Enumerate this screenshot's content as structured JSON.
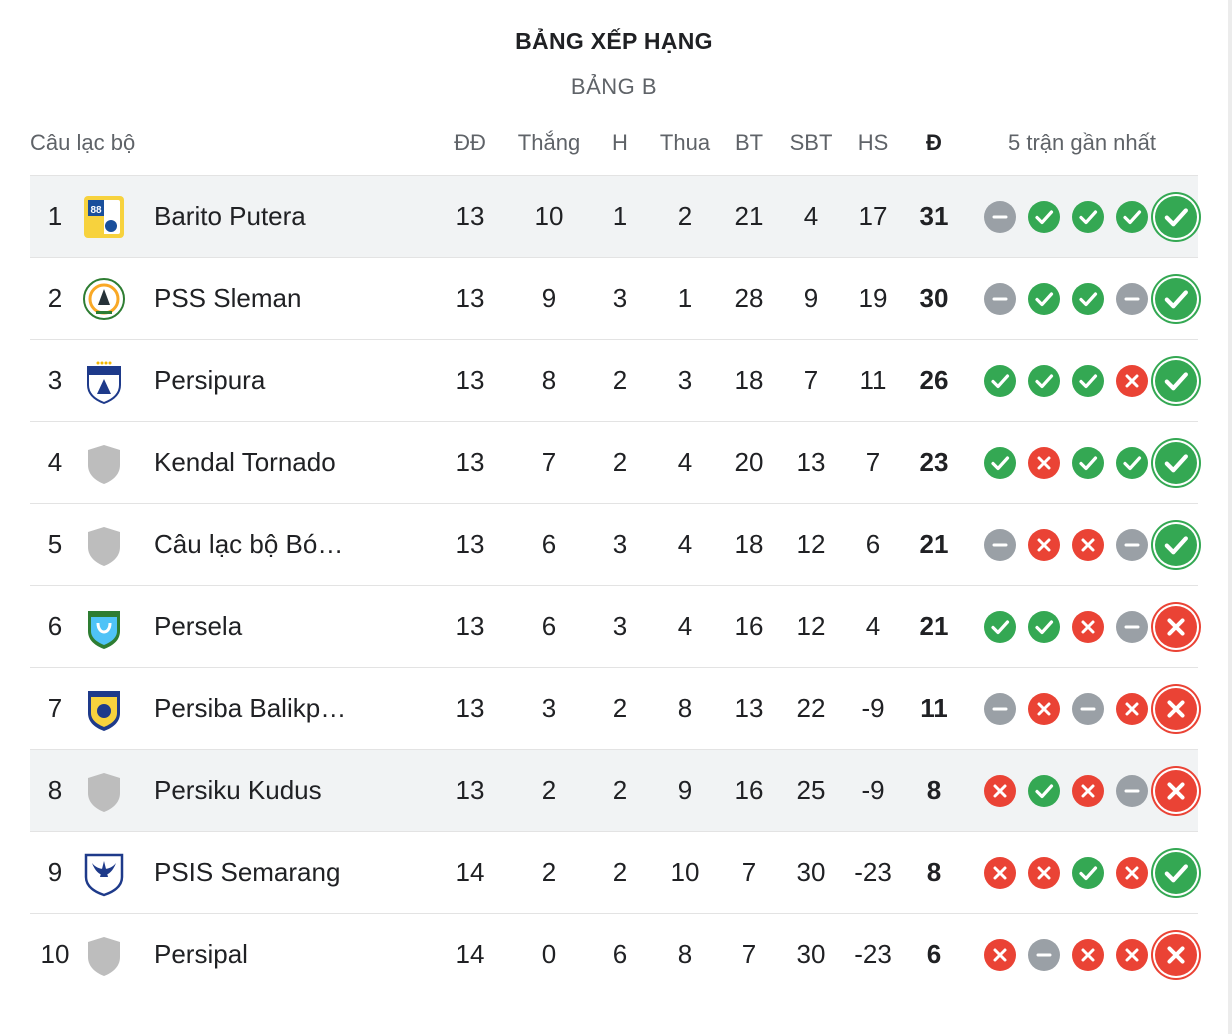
{
  "title": "BẢNG XẾP HẠNG",
  "subtitle": "BẢNG B",
  "headers": {
    "club": "Câu lạc bộ",
    "played": "ĐĐ",
    "won": "Thắng",
    "drawn": "H",
    "lost": "Thua",
    "gf": "BT",
    "ga": "SBT",
    "gd": "HS",
    "pts": "Đ",
    "form": "5 trận gần nhất"
  },
  "colors": {
    "win": "#34a853",
    "loss": "#ea4335",
    "draw": "#9aa0a6",
    "highlight": "#f1f3f4"
  },
  "rows": [
    {
      "pos": "1",
      "team": "Barito Putera",
      "logo": "barito-putera-logo",
      "played": "13",
      "won": "10",
      "drawn": "1",
      "lost": "2",
      "gf": "21",
      "ga": "4",
      "gd": "17",
      "pts": "31",
      "form": [
        "D",
        "W",
        "W",
        "W",
        "W"
      ],
      "highlight": true
    },
    {
      "pos": "2",
      "team": "PSS Sleman",
      "logo": "pss-sleman-logo",
      "played": "13",
      "won": "9",
      "drawn": "3",
      "lost": "1",
      "gf": "28",
      "ga": "9",
      "gd": "19",
      "pts": "30",
      "form": [
        "D",
        "W",
        "W",
        "D",
        "W"
      ],
      "highlight": false
    },
    {
      "pos": "3",
      "team": "Persipura",
      "logo": "persipura-logo",
      "played": "13",
      "won": "8",
      "drawn": "2",
      "lost": "3",
      "gf": "18",
      "ga": "7",
      "gd": "11",
      "pts": "26",
      "form": [
        "W",
        "W",
        "W",
        "L",
        "W"
      ],
      "highlight": false
    },
    {
      "pos": "4",
      "team": "Kendal Tornado",
      "logo": "shield-placeholder-logo",
      "played": "13",
      "won": "7",
      "drawn": "2",
      "lost": "4",
      "gf": "20",
      "ga": "13",
      "gd": "7",
      "pts": "23",
      "form": [
        "W",
        "L",
        "W",
        "W",
        "W"
      ],
      "highlight": false
    },
    {
      "pos": "5",
      "team": "Câu lạc bộ Bó…",
      "logo": "shield-placeholder-logo",
      "played": "13",
      "won": "6",
      "drawn": "3",
      "lost": "4",
      "gf": "18",
      "ga": "12",
      "gd": "6",
      "pts": "21",
      "form": [
        "D",
        "L",
        "L",
        "D",
        "W"
      ],
      "highlight": false
    },
    {
      "pos": "6",
      "team": "Persela",
      "logo": "persela-logo",
      "played": "13",
      "won": "6",
      "drawn": "3",
      "lost": "4",
      "gf": "16",
      "ga": "12",
      "gd": "4",
      "pts": "21",
      "form": [
        "W",
        "W",
        "L",
        "D",
        "L"
      ],
      "highlight": false
    },
    {
      "pos": "7",
      "team": "Persiba Balikp…",
      "logo": "persiba-logo",
      "played": "13",
      "won": "3",
      "drawn": "2",
      "lost": "8",
      "gf": "13",
      "ga": "22",
      "gd": "-9",
      "pts": "11",
      "form": [
        "D",
        "L",
        "D",
        "L",
        "L"
      ],
      "highlight": false
    },
    {
      "pos": "8",
      "team": "Persiku Kudus",
      "logo": "shield-placeholder-logo",
      "played": "13",
      "won": "2",
      "drawn": "2",
      "lost": "9",
      "gf": "16",
      "ga": "25",
      "gd": "-9",
      "pts": "8",
      "form": [
        "L",
        "W",
        "L",
        "D",
        "L"
      ],
      "highlight": true
    },
    {
      "pos": "9",
      "team": "PSIS Semarang",
      "logo": "psis-semarang-logo",
      "played": "14",
      "won": "2",
      "drawn": "2",
      "lost": "10",
      "gf": "7",
      "ga": "30",
      "gd": "-23",
      "pts": "8",
      "form": [
        "L",
        "L",
        "W",
        "L",
        "W"
      ],
      "highlight": false
    },
    {
      "pos": "10",
      "team": "Persipal",
      "logo": "shield-placeholder-logo",
      "played": "14",
      "won": "0",
      "drawn": "6",
      "lost": "8",
      "gf": "7",
      "ga": "30",
      "gd": "-23",
      "pts": "6",
      "form": [
        "L",
        "D",
        "L",
        "L",
        "L"
      ],
      "highlight": false
    }
  ]
}
